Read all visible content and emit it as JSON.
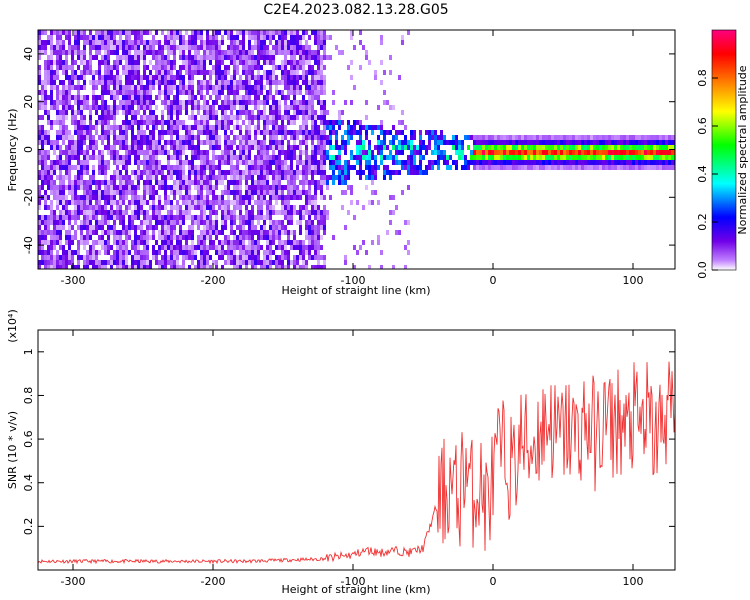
{
  "title": "C2E4.2023.082.13.28.G05",
  "chart_data": [
    {
      "type": "heatmap",
      "title": "C2E4.2023.082.13.28.G05",
      "xlabel": "Height of straight line (km)",
      "ylabel": "Frequency (Hz)",
      "xlim": [
        -325,
        130
      ],
      "ylim": [
        -50,
        50
      ],
      "x_ticks": [
        -300,
        -200,
        -100,
        0,
        100
      ],
      "y_ticks": [
        -40,
        -20,
        0,
        20,
        40
      ],
      "colorbar": {
        "label": "Normalized spectral amplitude",
        "range": [
          0.0,
          1.0
        ],
        "ticks": [
          0.0,
          0.2,
          0.4,
          0.6,
          0.8
        ],
        "colors": [
          "#ffffff",
          "#c080ff",
          "#7000e8",
          "#0000ff",
          "#00ffff",
          "#00ff00",
          "#ffff00",
          "#ff8000",
          "#ff0000",
          "#ff0080"
        ]
      },
      "description_regions": [
        {
          "x_range": [
            -325,
            -120
          ],
          "freq_range": [
            -50,
            50
          ],
          "amplitude": 0.1
        },
        {
          "x_range": [
            -150,
            -20
          ],
          "freq_range": [
            -15,
            15
          ],
          "amplitude": 0.3
        },
        {
          "x_range": [
            -20,
            130
          ],
          "freq_range": [
            -3,
            3
          ],
          "amplitude": 0.9
        }
      ]
    },
    {
      "type": "line",
      "xlabel": "Height of straight line (km)",
      "ylabel": "SNR (10 * v/v)",
      "yscale_label": "(x10⁴)",
      "xlim": [
        -325,
        130
      ],
      "ylim": [
        0,
        1.1
      ],
      "x_ticks": [
        -300,
        -200,
        -100,
        0,
        100
      ],
      "y_ticks": [
        0.2,
        0.4,
        0.6,
        0.8,
        1.0
      ],
      "color": "#f03030",
      "x": [
        -325,
        -300,
        -275,
        -250,
        -225,
        -200,
        -175,
        -150,
        -125,
        -110,
        -100,
        -90,
        -80,
        -70,
        -60,
        -50,
        -45,
        -40,
        -35,
        -30,
        -25,
        -20,
        -15,
        -10,
        -5,
        0,
        5,
        10,
        15,
        20,
        25,
        30,
        35,
        40,
        45,
        50,
        55,
        60,
        65,
        70,
        75,
        80,
        85,
        90,
        95,
        100,
        105,
        110,
        115,
        120,
        125,
        130
      ],
      "y": [
        0.04,
        0.04,
        0.04,
        0.04,
        0.04,
        0.04,
        0.04,
        0.045,
        0.05,
        0.06,
        0.07,
        0.09,
        0.08,
        0.09,
        0.08,
        0.1,
        0.2,
        0.3,
        0.35,
        0.4,
        0.3,
        0.5,
        0.35,
        0.4,
        0.3,
        0.4,
        0.55,
        0.5,
        0.45,
        0.6,
        0.55,
        0.6,
        0.65,
        0.7,
        0.6,
        0.62,
        0.65,
        0.6,
        0.68,
        0.65,
        0.6,
        0.7,
        0.65,
        0.7,
        0.6,
        0.7,
        0.65,
        0.7,
        0.6,
        0.65,
        0.75,
        0.7
      ]
    }
  ]
}
